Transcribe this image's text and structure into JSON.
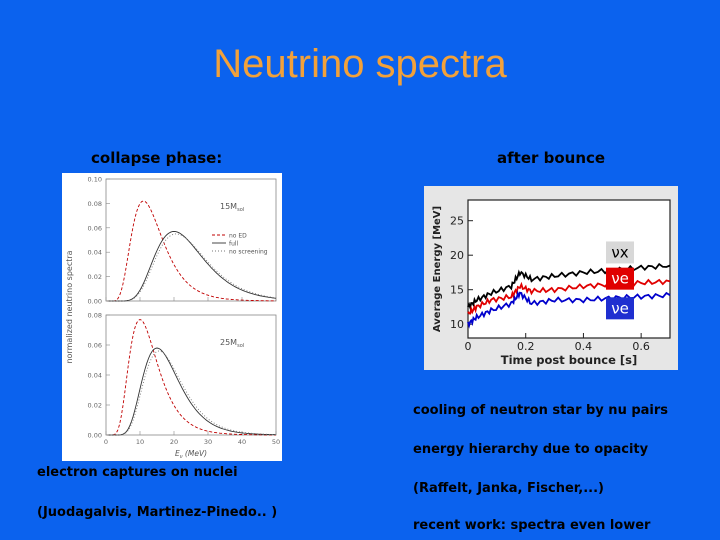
{
  "slide": {
    "title": "Neutrino spectra",
    "left_heading": "collapse phase:",
    "right_heading": "after bounce",
    "bullets": [
      "cooling of neutron star by nu pairs",
      "energy hierarchy due to opacity",
      "(Raffelt, Janka, Fischer,...)",
      "recent work: spectra even lower"
    ],
    "left_notes": [
      "electron captures on nuclei",
      "(Juodagalvis, Martinez-Pinedo.. )"
    ]
  },
  "chart_data": [
    {
      "type": "line",
      "panels": [
        {
          "label": "15M",
          "label_sub": "sol",
          "ylim": [
            0,
            0.1
          ],
          "yticks": [
            "0.00",
            "0.02",
            "0.04",
            "0.06",
            "0.08",
            "0.10"
          ],
          "series": [
            {
              "name": "no ED",
              "peak_x": 11,
              "peak_y": 0.082
            },
            {
              "name": "full",
              "peak_x": 20,
              "peak_y": 0.057
            },
            {
              "name": "no screening",
              "peak_x": 20,
              "peak_y": 0.055
            }
          ]
        },
        {
          "label": "25M",
          "label_sub": "sol",
          "ylim": [
            0,
            0.08
          ],
          "yticks": [
            "0.00",
            "0.02",
            "0.04",
            "0.06",
            "0.08"
          ],
          "series": [
            {
              "name": "no ED",
              "peak_x": 10,
              "peak_y": 0.077
            },
            {
              "name": "full",
              "peak_x": 15,
              "peak_y": 0.058
            },
            {
              "name": "no screening",
              "peak_x": 15,
              "peak_y": 0.056
            }
          ]
        }
      ],
      "xlim": [
        0,
        50
      ],
      "xticks": [
        "0",
        "10",
        "20",
        "30",
        "40",
        "50"
      ],
      "xlabel": "E",
      "xlabel_sub": "ν",
      "xlabel_unit": "(MeV)",
      "ylabel": "normalized neutrino spectra",
      "legend": [
        "no ED",
        "full",
        "no screening"
      ]
    },
    {
      "type": "line",
      "xlabel": "Time post bounce [s]",
      "ylabel": "Average Energy [MeV]",
      "xlim": [
        0,
        0.7
      ],
      "ylim": [
        8,
        28
      ],
      "xticks": [
        "0",
        "0.2",
        "0.4",
        "0.6"
      ],
      "yticks": [
        "10",
        "15",
        "20",
        "25"
      ],
      "series": [
        {
          "name": "νx",
          "color": "#000000",
          "x": [
            0,
            0.03,
            0.08,
            0.15,
            0.18,
            0.22,
            0.3,
            0.4,
            0.5,
            0.6,
            0.7
          ],
          "y": [
            12.5,
            13.5,
            14.5,
            15.5,
            17.5,
            16.5,
            17.0,
            17.5,
            17.8,
            18.2,
            18.5
          ]
        },
        {
          "name": "νe",
          "color": "#e00000",
          "x": [
            0,
            0.03,
            0.08,
            0.15,
            0.18,
            0.22,
            0.3,
            0.4,
            0.5,
            0.6,
            0.7
          ],
          "y": [
            11.5,
            12.5,
            13.5,
            14.0,
            15.5,
            14.8,
            15.0,
            15.5,
            15.8,
            16.0,
            16.2
          ]
        },
        {
          "name": "νe",
          "color": "#0000cc",
          "x": [
            0,
            0.03,
            0.08,
            0.15,
            0.18,
            0.22,
            0.3,
            0.4,
            0.5,
            0.6,
            0.7
          ],
          "y": [
            10.0,
            11.0,
            12.0,
            13.0,
            14.5,
            13.0,
            13.5,
            13.5,
            13.8,
            14.0,
            14.2
          ]
        }
      ]
    }
  ]
}
